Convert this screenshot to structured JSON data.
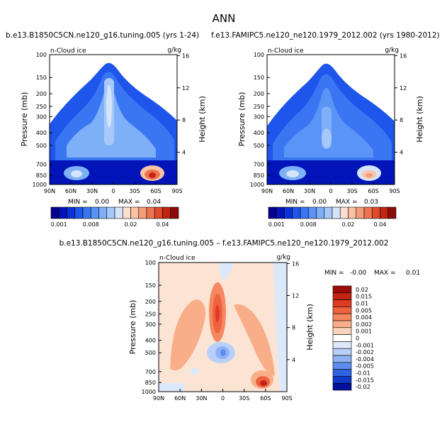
{
  "page_title": "ANN",
  "chart_data": [
    {
      "id": "panel_a",
      "type": "heatmap",
      "title": "b.e13.B1850C5CN.ne120_g16.tuning.005 (yrs 1-24)",
      "variable_label": "n-Cloud ice",
      "units": "g/kg",
      "xlabel": "",
      "ylabel": "Pressure (mb)",
      "ylabel_right": "Height (km)",
      "x_ticks": [
        "90N",
        "60N",
        "30N",
        "0",
        "30S",
        "60S",
        "90S"
      ],
      "y_ticks": [
        100,
        150,
        200,
        250,
        300,
        400,
        500,
        700,
        850,
        1000
      ],
      "height_ticks": [
        4,
        8,
        12,
        16
      ],
      "xlim": [
        90,
        -90
      ],
      "ylim": [
        1000,
        100
      ],
      "min_label": "MIN =",
      "max_label": "MAX =",
      "min": "0.00",
      "max": "0.04",
      "colorbar_levels": [
        "0.001",
        "0.002",
        "0.004",
        "0.006",
        "0.008",
        "0.01",
        "0.012",
        "0.014",
        "0.016",
        "0.02",
        "0.025",
        "0.03",
        "0.035",
        "0.04",
        "0.045",
        "0.05"
      ],
      "colorbar_tick_labels": [
        "0.001",
        "0.008",
        "0.02",
        "0.04"
      ],
      "features": [
        {
          "lat": 5,
          "p": 250,
          "value": 0.012
        },
        {
          "lat": 60,
          "p": 840,
          "value": 0.02
        },
        {
          "lat": -60,
          "p": 840,
          "value": 0.045
        }
      ]
    },
    {
      "id": "panel_b",
      "type": "heatmap",
      "title": "f.e13.FAMIPC5.ne120_ne120.1979_2012.002 (yrs 1980-2012)",
      "variable_label": "n-Cloud ice",
      "units": "g/kg",
      "xlabel": "",
      "ylabel": "Pressure (mb)",
      "ylabel_right": "Height (km)",
      "x_ticks": [
        "90N",
        "60N",
        "30N",
        "0",
        "30S",
        "60S",
        "90S"
      ],
      "y_ticks": [
        100,
        150,
        200,
        250,
        300,
        400,
        500,
        700,
        850,
        1000
      ],
      "height_ticks": [
        4,
        8,
        12,
        16
      ],
      "xlim": [
        90,
        -90
      ],
      "ylim": [
        1000,
        100
      ],
      "min_label": "MIN =",
      "max_label": "MAX =",
      "min": "0.00",
      "max": "0.03",
      "colorbar_levels": [
        "0.001",
        "0.002",
        "0.004",
        "0.006",
        "0.008",
        "0.01",
        "0.012",
        "0.014",
        "0.016",
        "0.02",
        "0.025",
        "0.03",
        "0.035",
        "0.04",
        "0.045",
        "0.05"
      ],
      "colorbar_tick_labels": [
        "0.001",
        "0.008",
        "0.02",
        "0.04"
      ],
      "features": [
        {
          "lat": 5,
          "p": 400,
          "value": 0.01
        },
        {
          "lat": 60,
          "p": 840,
          "value": 0.02
        },
        {
          "lat": -60,
          "p": 840,
          "value": 0.03
        }
      ]
    },
    {
      "id": "panel_diff",
      "type": "heatmap",
      "title": "b.e13.B1850C5CN.ne120_g16.tuning.005 – f.e13.FAMIPC5.ne120_ne120.1979_2012.002",
      "variable_label": "n-Cloud ice",
      "units": "g/kg",
      "xlabel": "",
      "ylabel": "Pressure (mb)",
      "ylabel_right": "Height (km)",
      "x_ticks": [
        "90N",
        "60N",
        "30N",
        "0",
        "30S",
        "60S",
        "90S"
      ],
      "y_ticks": [
        100,
        150,
        200,
        250,
        300,
        400,
        500,
        700,
        850,
        1000
      ],
      "height_ticks": [
        4,
        8,
        12,
        16
      ],
      "xlim": [
        90,
        -90
      ],
      "ylim": [
        1000,
        100
      ],
      "min_label": "MIN =",
      "max_label": "MAX =",
      "min": "-0.00",
      "max": "0.01",
      "colorbar_levels": [
        "0.02",
        "0.015",
        "0.01",
        "0.005",
        "0.004",
        "0.002",
        "0.001",
        "0",
        "-0.001",
        "-0.002",
        "-0.004",
        "-0.005",
        "-0.01",
        "-0.015",
        "-0.02"
      ],
      "features": [
        {
          "lat": 5,
          "p": 230,
          "value": 0.005
        },
        {
          "lat": -55,
          "p": 850,
          "value": 0.01
        },
        {
          "lat": 5,
          "p": 500,
          "value": -0.002
        }
      ]
    }
  ],
  "colors": {
    "seq": [
      "#02008c",
      "#0014b8",
      "#0a32d7",
      "#1e55ea",
      "#3a76f2",
      "#5a94f6",
      "#7eb0f8",
      "#a8c8fa",
      "#d4e4fb",
      "#fbe0d2",
      "#fbc2a6",
      "#f59c7a",
      "#ee7350",
      "#df4a2c",
      "#c22414",
      "#8c0a0a"
    ],
    "div": [
      "#9e0b0b",
      "#c22414",
      "#df3a22",
      "#ee6240",
      "#f58860",
      "#f9ae8a",
      "#fbd4bc",
      "#ffffff",
      "#dce9fb",
      "#b8d0f8",
      "#8fb2f4",
      "#5c8cee",
      "#2e62e2",
      "#0f3ac8",
      "#02109a"
    ]
  }
}
